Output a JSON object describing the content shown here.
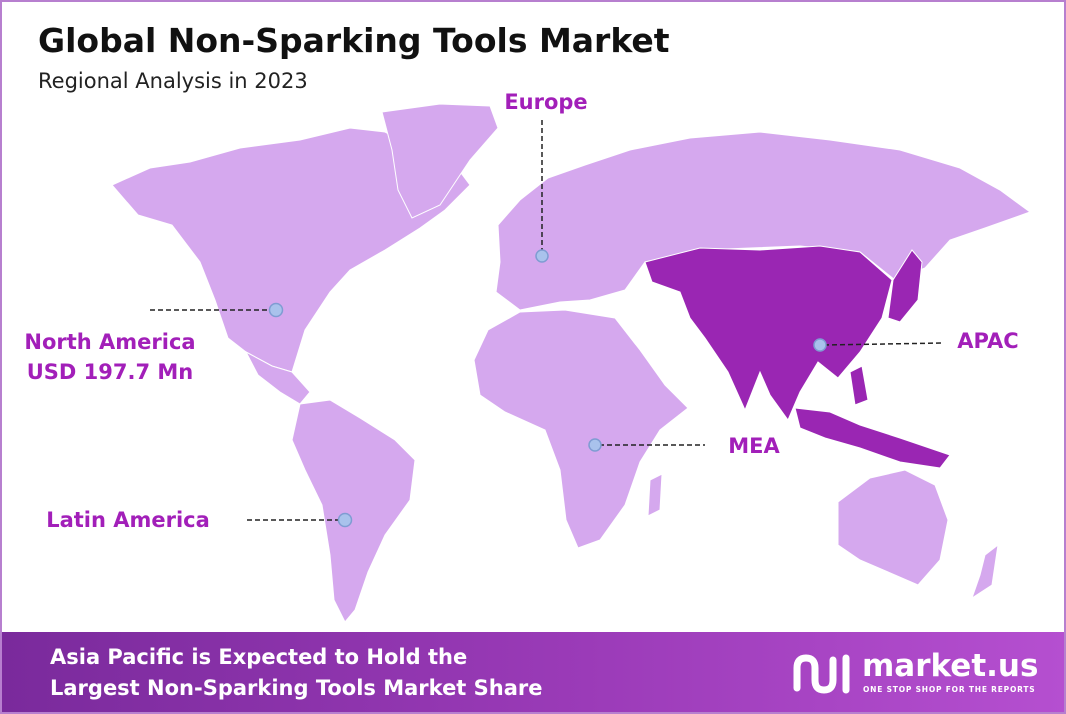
{
  "header": {
    "title": "Global Non-Sparking Tools Market",
    "subtitle": "Regional Analysis in 2023"
  },
  "regions": [
    {
      "label": "North America",
      "value": "USD 197.7 Mn"
    },
    {
      "label": "Europe"
    },
    {
      "label": "APAC"
    },
    {
      "label": "MEA"
    },
    {
      "label": "Latin America"
    }
  ],
  "footer": {
    "lines": [
      "Asia Pacific is Expected to Hold the",
      "Largest Non-Sparking Tools Market Share"
    ],
    "brand": "market.us",
    "tagline": "ONE STOP SHOP FOR THE REPORTS"
  }
}
